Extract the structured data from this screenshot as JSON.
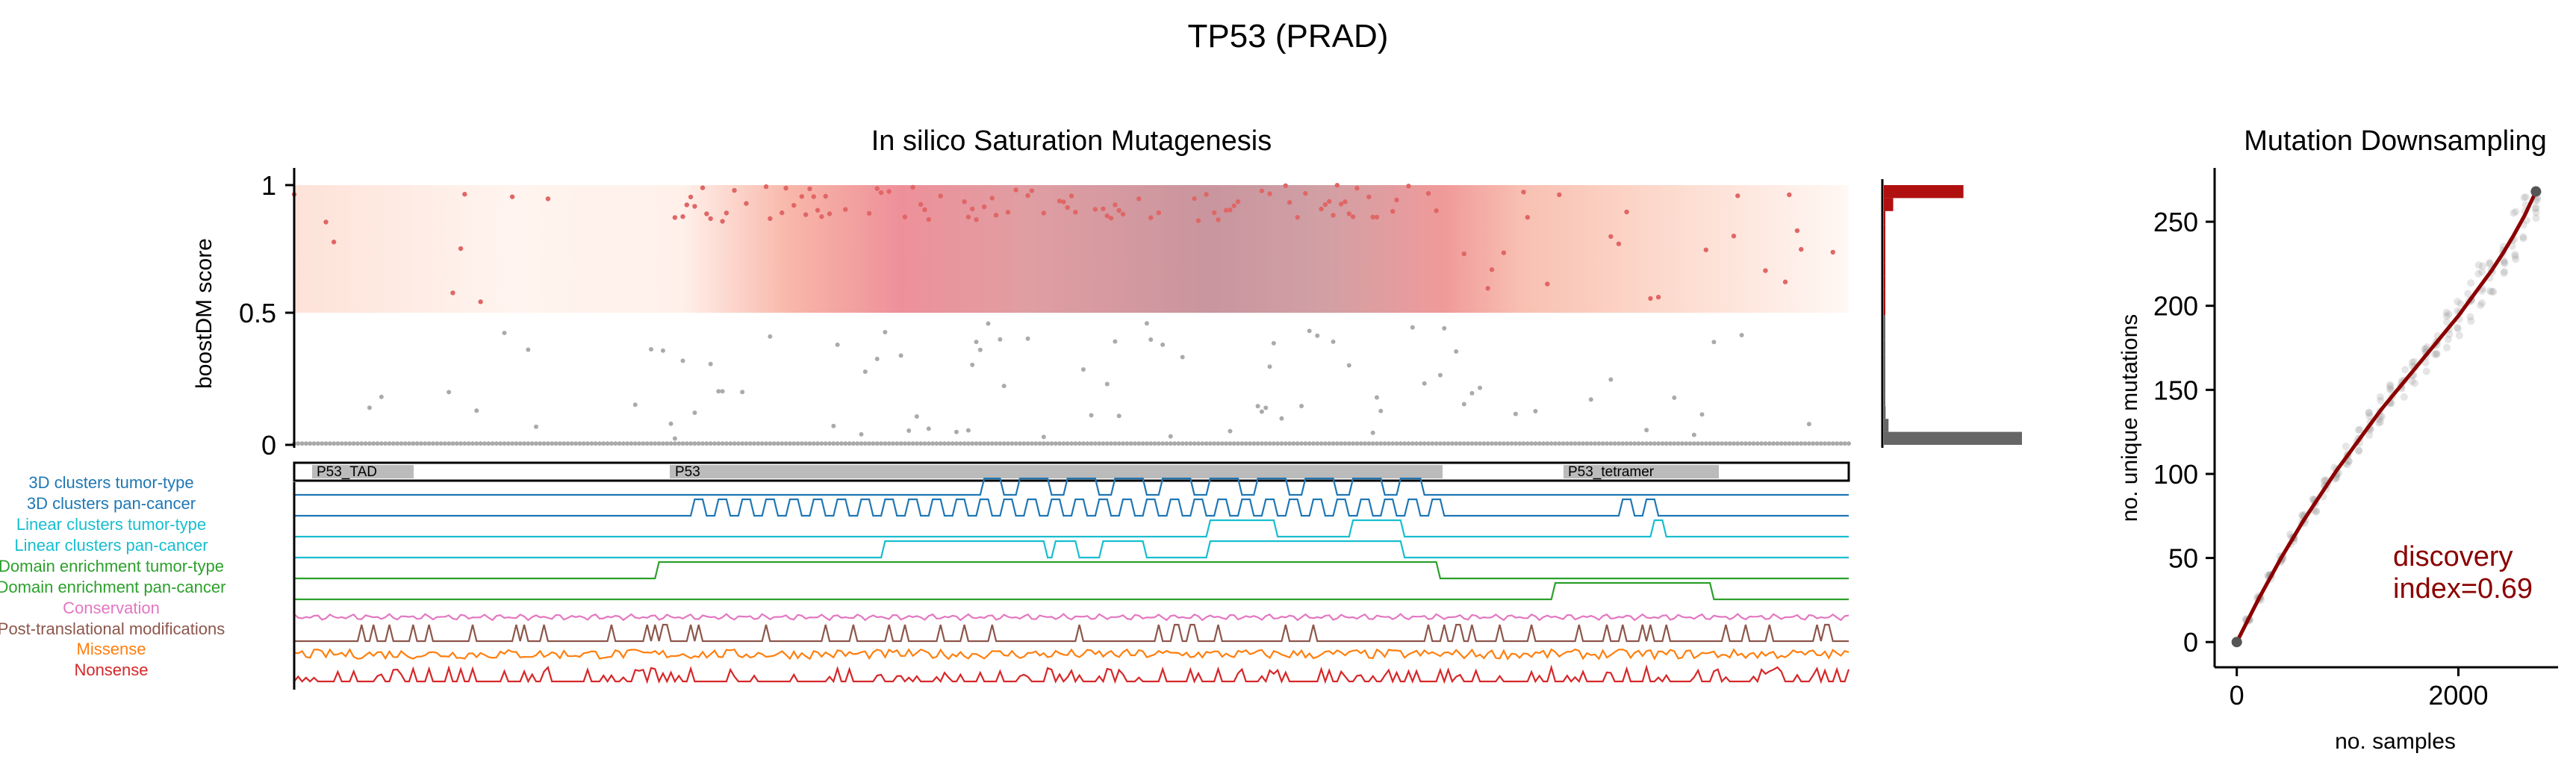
{
  "figure": {
    "suptitle": "TP53 (PRAD)"
  },
  "chart_data": [
    {
      "type": "scatter",
      "title": "In silico Saturation Mutagenesis",
      "xlabel": "",
      "ylabel": "boostDM score",
      "ylim": [
        0,
        1
      ],
      "yticks": [
        "0",
        "0.5",
        "1"
      ],
      "xlim": [
        1,
        393
      ],
      "driver_threshold": 0.5,
      "series": [
        {
          "name": "",
          "color": "#e06666",
          "points_note": ""
        },
        {
          "name": "",
          "color": "#aaaaaa"
        }
      ],
      "domains": [
        {
          "label": "P53_TAD",
          "start": 6,
          "end": 30
        },
        {
          "label": "P53",
          "start": 95,
          "end": 289
        },
        {
          "label": "P53_tetramer",
          "start": 319,
          "end": 358
        }
      ],
      "tracks": [
        {
          "label": "3D clusters tumor-type",
          "color": "#1f77b4"
        },
        {
          "label": "3D clusters pan-cancer",
          "color": "#1f77b4"
        },
        {
          "label": "Linear clusters tumor-type",
          "color": "#17becf"
        },
        {
          "label": "Linear clusters pan-cancer",
          "color": "#17becf"
        },
        {
          "label": "Domain enrichment tumor-type",
          "color": "#2ca02c"
        },
        {
          "label": "Domain enrichment pan-cancer",
          "color": "#2ca02c"
        },
        {
          "label": "Conservation",
          "color": "#e377c2"
        },
        {
          "label": "Post-translational modifications",
          "color": "#8c564b"
        },
        {
          "label": "Missense",
          "color": "#ff7f0e"
        },
        {
          "label": "Nonsense",
          "color": "#d62728"
        }
      ],
      "histogram": {
        "bins": [
          0.0,
          0.05,
          0.1,
          0.15,
          0.2,
          0.25,
          0.3,
          0.35,
          0.4,
          0.45,
          0.5,
          0.55,
          0.6,
          0.65,
          0.7,
          0.75,
          0.8,
          0.85,
          0.9,
          0.95
        ],
        "counts": [
          1180,
          40,
          15,
          10,
          12,
          8,
          9,
          5,
          7,
          4,
          5,
          6,
          5,
          5,
          7,
          6,
          8,
          12,
          80,
          680
        ],
        "color_below": "#666666",
        "color_above": "#b01010"
      }
    },
    {
      "type": "line",
      "title": "Mutation Downsampling",
      "xlabel": "no. samples",
      "ylabel": "no. unique mutations",
      "xlim": [
        -200,
        2900
      ],
      "ylim": [
        -15,
        282
      ],
      "xticks": [
        0,
        2000
      ],
      "yticks": [
        0,
        50,
        100,
        150,
        200,
        250
      ],
      "series": [
        {
          "name": "",
          "color": "#8b0000",
          "x": [
            0,
            100,
            200,
            300,
            400,
            500,
            600,
            700,
            800,
            900,
            1000,
            1100,
            1200,
            1300,
            1400,
            1500,
            1600,
            1700,
            1800,
            1900,
            2000,
            2100,
            2200,
            2300,
            2400,
            2500,
            2600,
            2700
          ],
          "y": [
            0,
            13,
            26,
            38,
            50,
            61,
            72,
            82,
            92,
            102,
            111,
            120,
            129,
            138,
            146,
            154,
            162,
            170,
            178,
            186,
            194,
            203,
            212,
            221,
            231,
            242,
            254,
            268
          ]
        }
      ],
      "annotation": "discovery\nindex=0.69",
      "annotation_lines": [
        "discovery",
        "index=0.69"
      ]
    }
  ]
}
